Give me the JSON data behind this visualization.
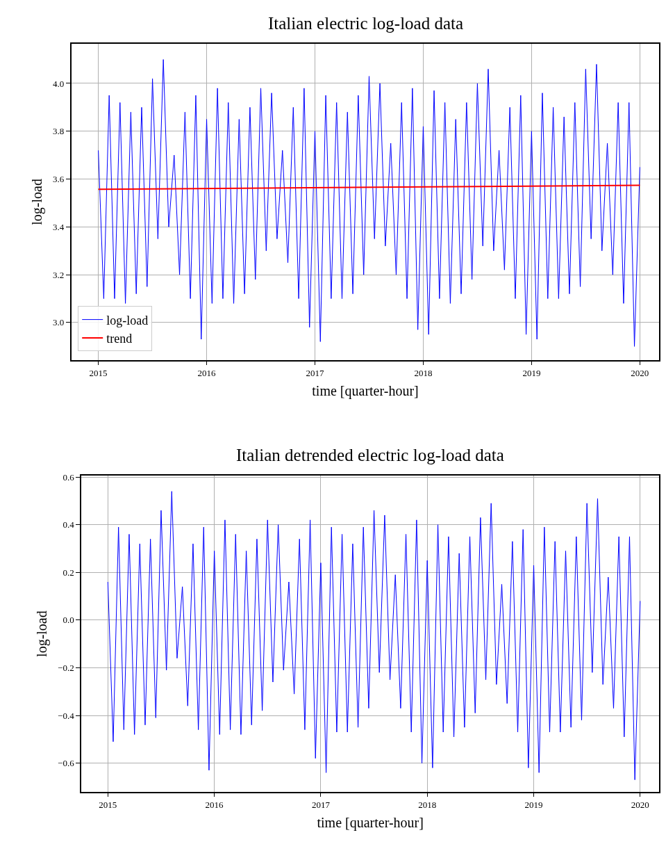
{
  "chart_data": [
    {
      "type": "line",
      "title": "Italian electric log-load data",
      "xlabel": "time [quarter-hour]",
      "ylabel": "log-load",
      "x": [
        2015.0,
        2015.05,
        2015.1,
        2015.15,
        2015.2,
        2015.25,
        2015.3,
        2015.35,
        2015.4,
        2015.45,
        2015.5,
        2015.55,
        2015.6,
        2015.65,
        2015.7,
        2015.75,
        2015.8,
        2015.85,
        2015.9,
        2015.95,
        2016.0,
        2016.05,
        2016.1,
        2016.15,
        2016.2,
        2016.25,
        2016.3,
        2016.35,
        2016.4,
        2016.45,
        2016.5,
        2016.55,
        2016.6,
        2016.65,
        2016.7,
        2016.75,
        2016.8,
        2016.85,
        2016.9,
        2016.95,
        2017.0,
        2017.05,
        2017.1,
        2017.15,
        2017.2,
        2017.25,
        2017.3,
        2017.35,
        2017.4,
        2017.45,
        2017.5,
        2017.55,
        2017.6,
        2017.65,
        2017.7,
        2017.75,
        2017.8,
        2017.85,
        2017.9,
        2017.95,
        2018.0,
        2018.05,
        2018.1,
        2018.15,
        2018.2,
        2018.25,
        2018.3,
        2018.35,
        2018.4,
        2018.45,
        2018.5,
        2018.55,
        2018.6,
        2018.65,
        2018.7,
        2018.75,
        2018.8,
        2018.85,
        2018.9,
        2018.95,
        2019.0,
        2019.05,
        2019.1,
        2019.15,
        2019.2,
        2019.25,
        2019.3,
        2019.35,
        2019.4,
        2019.45,
        2019.5,
        2019.55,
        2019.6,
        2019.65,
        2019.7,
        2019.75,
        2019.8,
        2019.85,
        2019.9,
        2019.95,
        2020.0
      ],
      "series": [
        {
          "name": "log-load",
          "color": "#0000ff",
          "values": [
            3.72,
            3.1,
            3.95,
            3.1,
            3.92,
            3.08,
            3.88,
            3.12,
            3.9,
            3.15,
            4.02,
            3.35,
            4.1,
            3.4,
            3.7,
            3.2,
            3.88,
            3.1,
            3.95,
            2.93,
            3.85,
            3.08,
            3.98,
            3.1,
            3.92,
            3.08,
            3.85,
            3.12,
            3.9,
            3.18,
            3.98,
            3.3,
            3.96,
            3.35,
            3.72,
            3.25,
            3.9,
            3.1,
            3.98,
            2.98,
            3.8,
            2.92,
            3.95,
            3.1,
            3.92,
            3.1,
            3.88,
            3.12,
            3.95,
            3.2,
            4.03,
            3.35,
            4.0,
            3.32,
            3.75,
            3.2,
            3.92,
            3.1,
            3.98,
            2.97,
            3.82,
            2.95,
            3.97,
            3.1,
            3.92,
            3.08,
            3.85,
            3.12,
            3.92,
            3.18,
            4.0,
            3.32,
            4.06,
            3.3,
            3.72,
            3.22,
            3.9,
            3.1,
            3.95,
            2.95,
            3.8,
            2.93,
            3.96,
            3.1,
            3.9,
            3.1,
            3.86,
            3.12,
            3.92,
            3.15,
            4.06,
            3.35,
            4.08,
            3.3,
            3.75,
            3.2,
            3.92,
            3.08,
            3.92,
            2.9,
            3.65
          ]
        },
        {
          "name": "trend",
          "color": "#ff0000",
          "x": [
            2015.0,
            2020.0
          ],
          "values": [
            3.557,
            3.574
          ]
        }
      ],
      "xlim": [
        2014.75,
        2020.18
      ],
      "ylim": [
        2.844,
        4.165
      ],
      "xticks": [
        2015,
        2016,
        2017,
        2018,
        2019,
        2020
      ],
      "yticks": [
        {
          "value": 3.0,
          "label": "3.0"
        },
        {
          "value": 3.2,
          "label": "3.2"
        },
        {
          "value": 3.4,
          "label": "3.4"
        },
        {
          "value": 3.6,
          "label": "3.6"
        },
        {
          "value": 3.8,
          "label": "3.8"
        },
        {
          "value": 4.0,
          "label": "4.0"
        }
      ],
      "grid": true,
      "legend": "bottom left"
    },
    {
      "type": "line",
      "title": "Italian detrended electric log-load data",
      "xlabel": "time [quarter-hour]",
      "ylabel": "log-load",
      "x": [
        2015.0,
        2015.05,
        2015.1,
        2015.15,
        2015.2,
        2015.25,
        2015.3,
        2015.35,
        2015.4,
        2015.45,
        2015.5,
        2015.55,
        2015.6,
        2015.65,
        2015.7,
        2015.75,
        2015.8,
        2015.85,
        2015.9,
        2015.95,
        2016.0,
        2016.05,
        2016.1,
        2016.15,
        2016.2,
        2016.25,
        2016.3,
        2016.35,
        2016.4,
        2016.45,
        2016.5,
        2016.55,
        2016.6,
        2016.65,
        2016.7,
        2016.75,
        2016.8,
        2016.85,
        2016.9,
        2016.95,
        2017.0,
        2017.05,
        2017.1,
        2017.15,
        2017.2,
        2017.25,
        2017.3,
        2017.35,
        2017.4,
        2017.45,
        2017.5,
        2017.55,
        2017.6,
        2017.65,
        2017.7,
        2017.75,
        2017.8,
        2017.85,
        2017.9,
        2017.95,
        2018.0,
        2018.05,
        2018.1,
        2018.15,
        2018.2,
        2018.25,
        2018.3,
        2018.35,
        2018.4,
        2018.45,
        2018.5,
        2018.55,
        2018.6,
        2018.65,
        2018.7,
        2018.75,
        2018.8,
        2018.85,
        2018.9,
        2018.95,
        2019.0,
        2019.05,
        2019.1,
        2019.15,
        2019.2,
        2019.25,
        2019.3,
        2019.35,
        2019.4,
        2019.45,
        2019.5,
        2019.55,
        2019.6,
        2019.65,
        2019.7,
        2019.75,
        2019.8,
        2019.85,
        2019.9,
        2019.95,
        2020.0
      ],
      "series": [
        {
          "color": "#0000ff",
          "values": [
            0.16,
            -0.51,
            0.39,
            -0.46,
            0.36,
            -0.48,
            0.32,
            -0.44,
            0.34,
            -0.41,
            0.46,
            -0.21,
            0.54,
            -0.16,
            0.14,
            -0.36,
            0.32,
            -0.46,
            0.39,
            -0.63,
            0.29,
            -0.48,
            0.42,
            -0.46,
            0.36,
            -0.48,
            0.29,
            -0.44,
            0.34,
            -0.38,
            0.42,
            -0.26,
            0.4,
            -0.21,
            0.16,
            -0.31,
            0.34,
            -0.46,
            0.42,
            -0.58,
            0.24,
            -0.64,
            0.39,
            -0.47,
            0.36,
            -0.47,
            0.32,
            -0.45,
            0.39,
            -0.37,
            0.46,
            -0.22,
            0.44,
            -0.25,
            0.19,
            -0.37,
            0.36,
            -0.47,
            0.42,
            -0.6,
            0.25,
            -0.62,
            0.4,
            -0.47,
            0.35,
            -0.49,
            0.28,
            -0.45,
            0.35,
            -0.39,
            0.43,
            -0.25,
            0.49,
            -0.27,
            0.15,
            -0.35,
            0.33,
            -0.47,
            0.38,
            -0.62,
            0.23,
            -0.64,
            0.39,
            -0.47,
            0.33,
            -0.47,
            0.29,
            -0.45,
            0.35,
            -0.42,
            0.49,
            -0.22,
            0.51,
            -0.27,
            0.18,
            -0.37,
            0.35,
            -0.49,
            0.35,
            -0.67,
            0.08
          ]
        }
      ],
      "xlim": [
        2014.75,
        2020.18
      ],
      "ylim": [
        -0.72,
        0.605
      ],
      "xticks": [
        2015,
        2016,
        2017,
        2018,
        2019,
        2020
      ],
      "yticks": [
        {
          "value": -0.6,
          "label": "−0.6"
        },
        {
          "value": -0.4,
          "label": "−0.4"
        },
        {
          "value": -0.2,
          "label": "−0.2"
        },
        {
          "value": 0.0,
          "label": "0.0"
        },
        {
          "value": 0.2,
          "label": "0.2"
        },
        {
          "value": 0.4,
          "label": "0.4"
        },
        {
          "value": 0.6,
          "label": "0.6"
        }
      ],
      "grid": true
    }
  ]
}
